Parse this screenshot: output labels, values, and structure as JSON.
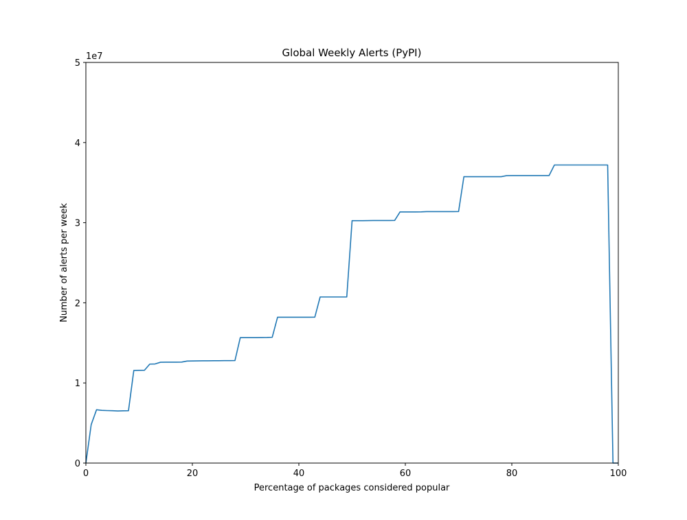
{
  "chart_data": {
    "type": "line",
    "title": "Global Weekly Alerts (PyPI)",
    "xlabel": "Percentage of packages considered popular",
    "ylabel": "Number of alerts per week",
    "xlim": [
      0,
      100
    ],
    "ylim": [
      0,
      50000000
    ],
    "x_ticks": [
      0,
      20,
      40,
      60,
      80,
      100
    ],
    "y_ticks": [
      0,
      10000000,
      20000000,
      30000000,
      40000000,
      50000000
    ],
    "x_tick_labels": [
      "0",
      "20",
      "40",
      "60",
      "80",
      "100"
    ],
    "y_tick_labels": [
      "0",
      "1",
      "2",
      "3",
      "4",
      "5"
    ],
    "y_offset_label": "1e7",
    "grid": false,
    "line_color": "#1f77b4",
    "series": [
      {
        "x": [
          0,
          1,
          2,
          3,
          4,
          5,
          6,
          7,
          8,
          9,
          10,
          11,
          12,
          13,
          14,
          15,
          16,
          17,
          18,
          19,
          20,
          21,
          22,
          23,
          24,
          25,
          26,
          27,
          28,
          29,
          30,
          31,
          32,
          33,
          34,
          35,
          36,
          37,
          38,
          39,
          40,
          41,
          42,
          43,
          44,
          45,
          46,
          47,
          48,
          49,
          50,
          51,
          52,
          53,
          54,
          55,
          56,
          57,
          58,
          59,
          60,
          61,
          62,
          63,
          64,
          65,
          66,
          67,
          68,
          69,
          70,
          71,
          72,
          73,
          74,
          75,
          76,
          77,
          78,
          79,
          80,
          81,
          82,
          83,
          84,
          85,
          86,
          87,
          88,
          89,
          90,
          91,
          92,
          93,
          94,
          95,
          96,
          97,
          98,
          99,
          100
        ],
        "y": [
          0,
          4800000,
          6650000,
          6580000,
          6550000,
          6530000,
          6500000,
          6520000,
          6530000,
          11550000,
          11570000,
          11580000,
          12350000,
          12370000,
          12580000,
          12590000,
          12590000,
          12590000,
          12600000,
          12730000,
          12740000,
          12750000,
          12760000,
          12760000,
          12770000,
          12770000,
          12780000,
          12780000,
          12790000,
          15650000,
          15650000,
          15650000,
          15650000,
          15660000,
          15670000,
          15700000,
          18200000,
          18200000,
          18200000,
          18200000,
          18200000,
          18200000,
          18200000,
          18210000,
          20730000,
          20730000,
          20730000,
          20730000,
          20730000,
          20730000,
          30250000,
          30250000,
          30250000,
          30260000,
          30270000,
          30270000,
          30270000,
          30270000,
          30280000,
          31340000,
          31340000,
          31340000,
          31340000,
          31350000,
          31380000,
          31380000,
          31380000,
          31380000,
          31380000,
          31380000,
          31390000,
          35740000,
          35740000,
          35740000,
          35740000,
          35740000,
          35740000,
          35740000,
          35740000,
          35870000,
          35880000,
          35880000,
          35880000,
          35880000,
          35880000,
          35880000,
          35880000,
          35880000,
          37200000,
          37200000,
          37200000,
          37200000,
          37200000,
          37200000,
          37200000,
          37200000,
          37200000,
          37200000,
          37200000,
          0,
          0
        ]
      }
    ]
  }
}
